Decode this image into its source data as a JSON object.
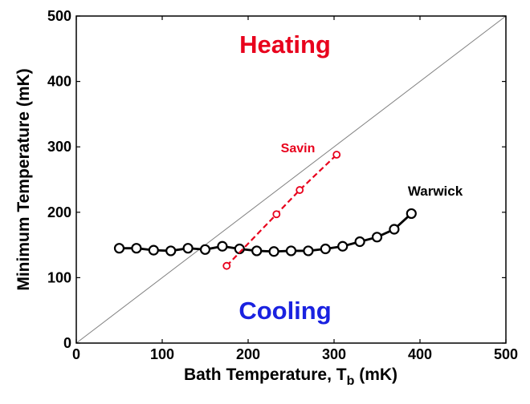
{
  "chart_data": {
    "type": "line",
    "xlabel_main": "Bath Temperature, T",
    "xlabel_sub": "b",
    "xlabel_unit": " (mK)",
    "ylabel": "Minimum Temperature (mK)",
    "xlim": [
      0,
      500
    ],
    "ylim": [
      0,
      500
    ],
    "x_ticks": [
      "0",
      "100",
      "200",
      "300",
      "400",
      "500"
    ],
    "y_ticks": [
      "0",
      "100",
      "200",
      "300",
      "400",
      "500"
    ],
    "grid": false,
    "annotations": {
      "heating": "Heating",
      "cooling": "Cooling"
    },
    "colors": {
      "heating": "#e8001c",
      "cooling": "#1a22e0",
      "savin": "#e8001c",
      "warwick": "#000000",
      "diagonal": "#808080"
    },
    "series": [
      {
        "name": "Warwick",
        "style": "solid",
        "marker": "circle",
        "x": [
          50,
          70,
          90,
          110,
          130,
          150,
          170,
          190,
          210,
          230,
          250,
          270,
          290,
          310,
          330,
          350,
          370,
          390
        ],
        "y": [
          145,
          145,
          142,
          141,
          145,
          143,
          148,
          144,
          141,
          140,
          141,
          141,
          144,
          148,
          155,
          162,
          174,
          198
        ]
      },
      {
        "name": "Savin",
        "style": "dashed",
        "marker": "circle",
        "x": [
          175,
          233,
          260,
          303
        ],
        "y": [
          118,
          197,
          234,
          288
        ]
      }
    ],
    "reference_line": {
      "x": [
        0,
        500
      ],
      "y": [
        0,
        500
      ]
    }
  }
}
